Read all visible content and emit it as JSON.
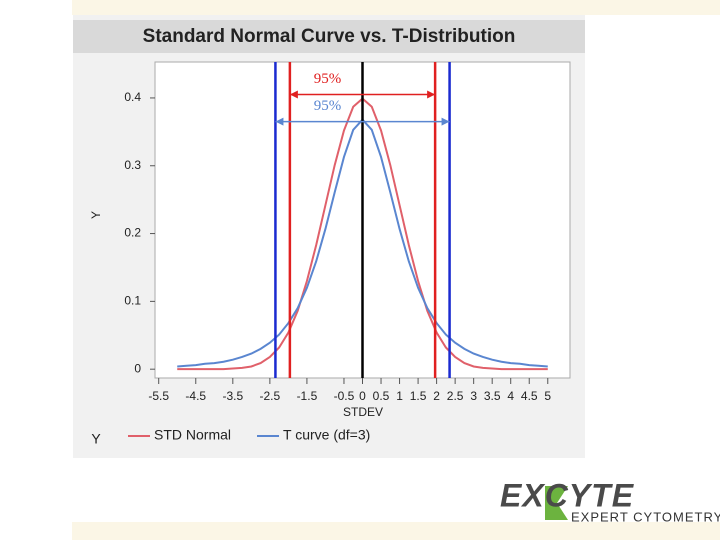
{
  "chart_data": {
    "type": "line",
    "title": "Standard Normal Curve vs. T-Distribution",
    "x_label": "STDEV",
    "y_label": "Y",
    "legend_title": "Y",
    "x": [
      -5,
      -4.75,
      -4.5,
      -4.25,
      -4,
      -3.75,
      -3.5,
      -3.25,
      -3,
      -2.75,
      -2.5,
      -2.25,
      -2,
      -1.75,
      -1.5,
      -1.25,
      -1,
      -0.75,
      -0.5,
      -0.25,
      0,
      0.25,
      0.5,
      0.75,
      1,
      1.25,
      1.5,
      1.75,
      2,
      2.25,
      2.5,
      2.75,
      3,
      3.25,
      3.5,
      3.75,
      4,
      4.25,
      4.5,
      4.75,
      5
    ],
    "series": [
      {
        "name": "STD Normal",
        "color": "#e0606a",
        "values": [
          0,
          0,
          0,
          0,
          0,
          0,
          0.001,
          0.002,
          0.004,
          0.009,
          0.018,
          0.032,
          0.054,
          0.086,
          0.13,
          0.183,
          0.242,
          0.301,
          0.352,
          0.387,
          0.399,
          0.387,
          0.352,
          0.301,
          0.242,
          0.183,
          0.13,
          0.086,
          0.054,
          0.032,
          0.018,
          0.009,
          0.004,
          0.002,
          0.001,
          0,
          0,
          0,
          0,
          0,
          0
        ]
      },
      {
        "name": "T curve (df=3)",
        "color": "#5a86d0",
        "values": [
          0.004,
          0.005,
          0.006,
          0.008,
          0.009,
          0.011,
          0.014,
          0.018,
          0.023,
          0.03,
          0.039,
          0.051,
          0.068,
          0.09,
          0.12,
          0.159,
          0.207,
          0.261,
          0.313,
          0.353,
          0.368,
          0.353,
          0.313,
          0.261,
          0.207,
          0.159,
          0.12,
          0.09,
          0.068,
          0.051,
          0.039,
          0.03,
          0.023,
          0.018,
          0.014,
          0.011,
          0.009,
          0.008,
          0.006,
          0.005,
          0.004
        ]
      }
    ],
    "xlim": [
      -5.6,
      5.6
    ],
    "ylim": [
      -0.013,
      0.453
    ],
    "xticks": [
      -5.5,
      -4.5,
      -3.5,
      -2.5,
      -1.5,
      -0.5,
      0,
      0.5,
      1,
      1.5,
      2,
      2.5,
      3,
      3.5,
      4,
      4.5,
      5
    ],
    "yticks": [
      0,
      0.1,
      0.2,
      0.3,
      0.4
    ],
    "vlines": [
      {
        "x": -1.96,
        "color": "#e02020"
      },
      {
        "x": 1.96,
        "color": "#e02020"
      },
      {
        "x": -2.35,
        "color": "#1a2ad0"
      },
      {
        "x": 2.35,
        "color": "#1a2ad0"
      },
      {
        "x": 0,
        "color": "#000000"
      }
    ],
    "annotations": [
      {
        "text": "95%",
        "x1": -1.96,
        "x2": 1.96,
        "y": 0.405,
        "color": "#e02020"
      },
      {
        "text": "95%",
        "x1": -2.35,
        "x2": 2.35,
        "y": 0.365,
        "color": "#5a86d0"
      }
    ]
  },
  "logo": {
    "name": "EXCYTE",
    "tagline": "EXPERT CYTOMETRY"
  }
}
